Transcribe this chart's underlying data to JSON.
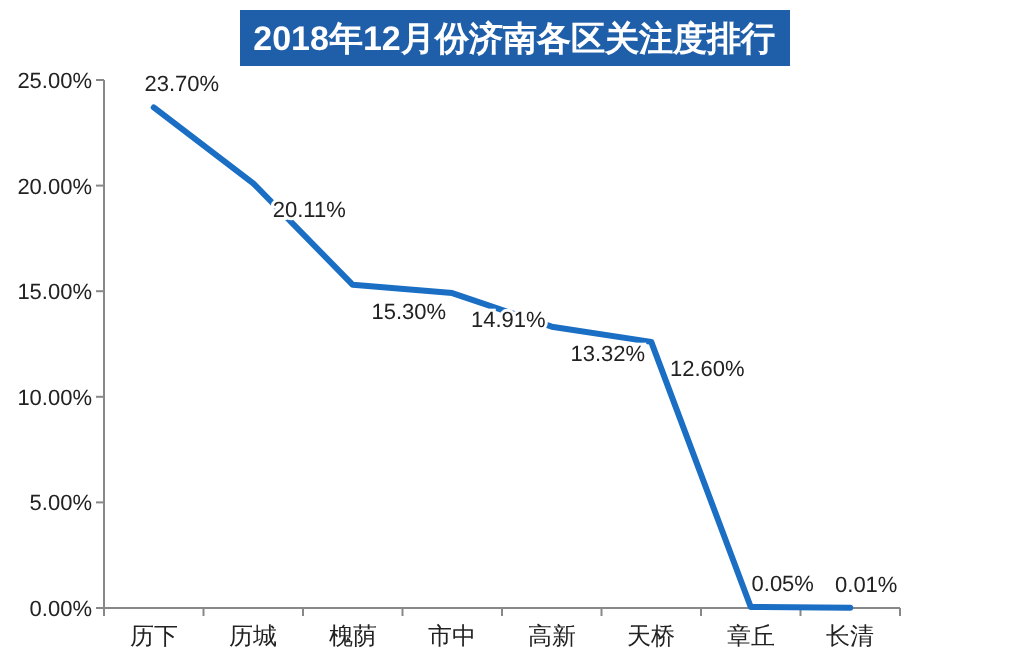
{
  "chart_data": {
    "type": "line",
    "title": "2018年12月份济南各区关注度排行",
    "categories": [
      "历下",
      "历城",
      "槐荫",
      "市中",
      "高新",
      "天桥",
      "章丘",
      "长清"
    ],
    "series": [
      {
        "color": "#1a6fc4",
        "values": [
          23.7,
          20.11,
          15.3,
          14.91,
          13.32,
          12.6,
          0.05,
          0.01
        ],
        "value_labels": [
          "23.70%",
          "20.11%",
          "15.30%",
          "14.91%",
          "13.32%",
          "12.60%",
          "0.05%",
          "0.01%"
        ]
      }
    ],
    "ylim": [
      0,
      25
    ],
    "yticks": [
      {
        "value": 0,
        "label": "0.00%"
      },
      {
        "value": 5,
        "label": "5.00%"
      },
      {
        "value": 10,
        "label": "10.00%"
      },
      {
        "value": 15,
        "label": "15.00%"
      },
      {
        "value": 20,
        "label": "20.00%"
      },
      {
        "value": 25,
        "label": "25.00%"
      }
    ],
    "grid": false,
    "marker": "none",
    "line_style": "solid"
  }
}
